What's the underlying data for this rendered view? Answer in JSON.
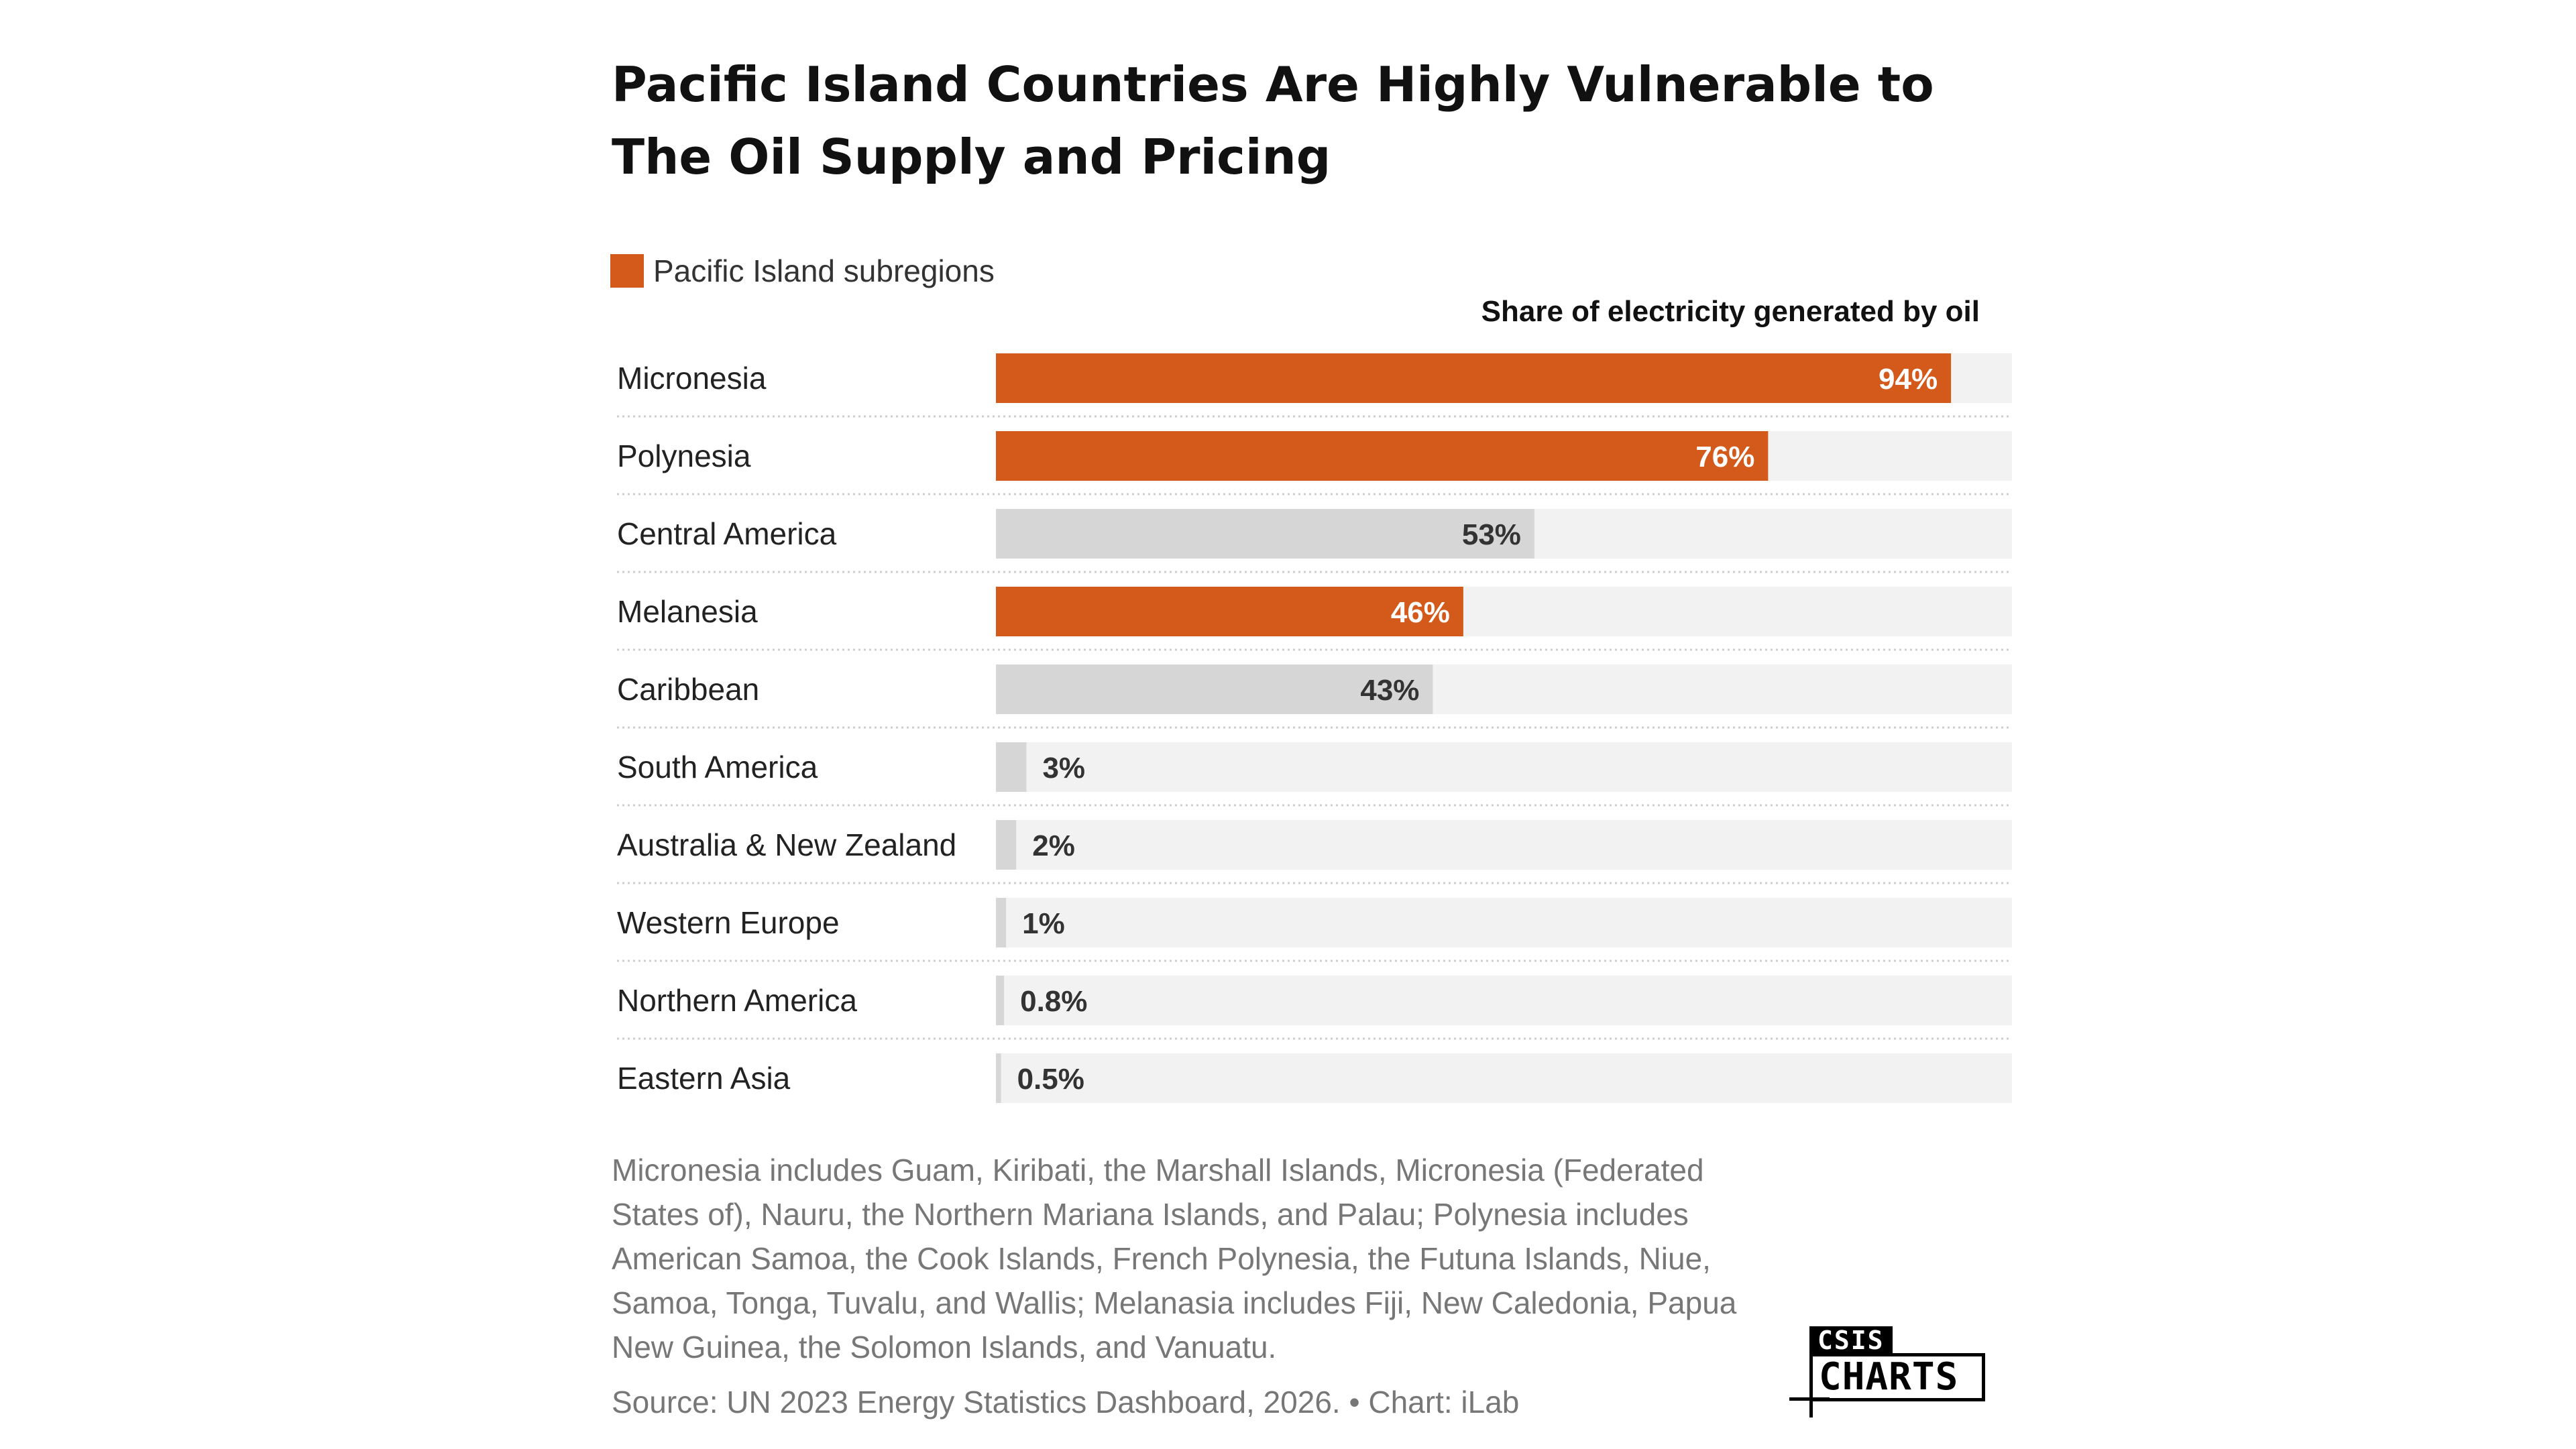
{
  "colors": {
    "highlight": "#D35A1A",
    "other": "#D6D6D6",
    "track": "#F2F2F2",
    "value_on_highlight": "#FFFFFF",
    "value_on_other": "#333333"
  },
  "chart_data": {
    "type": "bar",
    "orientation": "horizontal",
    "title": "Pacific Island Countries Are Highly Vulnerable to The Oil Supply and Pricing",
    "value_header": "Share of electricity generated by oil",
    "legend": {
      "label": "Pacific Island subregions",
      "position": "top-left"
    },
    "xlim": [
      0,
      100
    ],
    "unit": "%",
    "grid": false,
    "categories": [
      "Micronesia",
      "Polynesia",
      "Central America",
      "Melanesia",
      "Caribbean",
      "South America",
      "Australia & New Zealand",
      "Western Europe",
      "Northern America",
      "Eastern Asia"
    ],
    "values": [
      94,
      76,
      53,
      46,
      43,
      3,
      2,
      1,
      0.8,
      0.5
    ],
    "value_labels": [
      "94%",
      "76%",
      "53%",
      "46%",
      "43%",
      "3%",
      "2%",
      "1%",
      "0.8%",
      "0.5%"
    ],
    "highlighted": [
      true,
      true,
      false,
      true,
      false,
      false,
      false,
      false,
      false,
      false
    ]
  },
  "footnote": "Micronesia includes Guam, Kiribati, the Marshall Islands, Micronesia (Federated States of), Nauru, the Northern Mariana Islands, and Palau; Polynesia includes American Samoa, the Cook Islands, French Polynesia, the Futuna Islands, Niue, Samoa, Tonga, Tuvalu, and Wallis; Melanasia includes Fiji, New Caledonia, Papua New Guinea, the Solomon Islands, and Vanuatu.",
  "source": "Source: UN 2023 Energy Statistics Dashboard, 2026. • Chart: iLab",
  "logo": {
    "top": "CSIS",
    "bottom": "CHARTS"
  }
}
